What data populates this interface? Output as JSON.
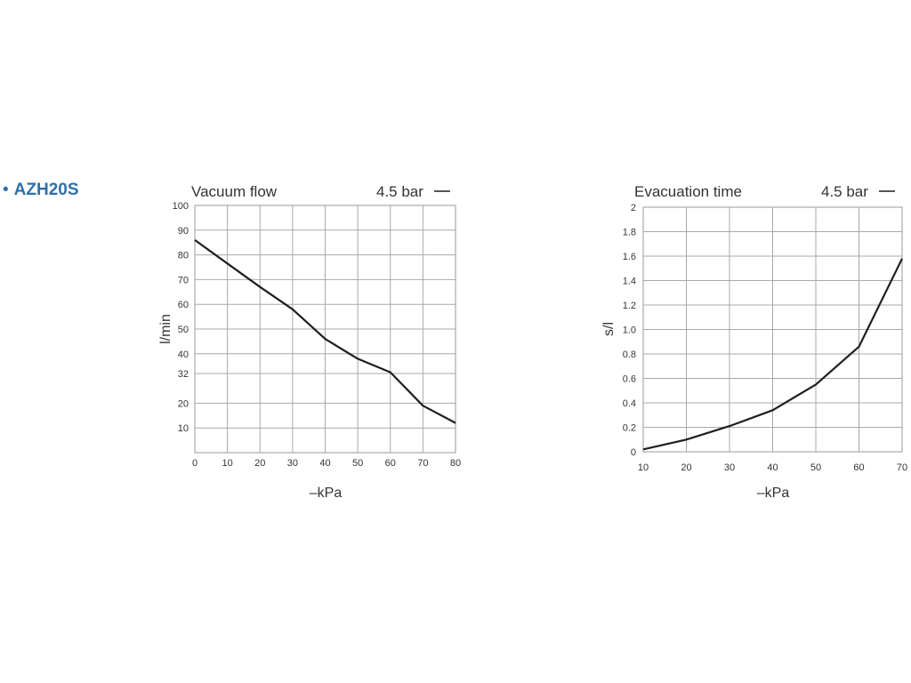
{
  "product": {
    "bullet": "•",
    "name": "AZH20S"
  },
  "chart_data": [
    {
      "type": "line",
      "title": "Vacuum flow",
      "legend": {
        "label": "4.5 bar",
        "placement": "top-right"
      },
      "xlabel": "–kPa",
      "ylabel": "l/min",
      "xlim": [
        0,
        80
      ],
      "ylim": [
        0,
        100
      ],
      "grid": true,
      "x_ticks": [
        "0",
        "10",
        "20",
        "30",
        "40",
        "50",
        "60",
        "70",
        "80"
      ],
      "y_ticks": [
        "10",
        "20",
        "32",
        "40",
        "50",
        "60",
        "70",
        "80",
        "90",
        "100"
      ],
      "series": [
        {
          "color": "#1e1e1e",
          "x": [
            0,
            10,
            20,
            30,
            40,
            50,
            60,
            70,
            80
          ],
          "y": [
            86,
            76.5,
            67,
            58,
            46,
            38,
            32.5,
            19,
            12
          ]
        }
      ]
    },
    {
      "type": "line",
      "title": "Evacuation time",
      "legend": {
        "label": "4.5 bar",
        "placement": "top-right"
      },
      "xlabel": "–kPa",
      "ylabel": "s/l",
      "xlim": [
        10,
        70
      ],
      "ylim": [
        0,
        2
      ],
      "grid": true,
      "x_ticks": [
        "10",
        "20",
        "30",
        "40",
        "50",
        "60",
        "70"
      ],
      "y_ticks": [
        "0",
        "0.2",
        "0.4",
        "0.6",
        "0.8",
        "1.0",
        "1.2",
        "1.4",
        "1.6",
        "1.8",
        "2"
      ],
      "series": [
        {
          "color": "#1e1e1e",
          "x": [
            10,
            20,
            30,
            40,
            50,
            60,
            70
          ],
          "y": [
            0.02,
            0.1,
            0.21,
            0.34,
            0.55,
            0.86,
            1.58
          ]
        }
      ]
    }
  ]
}
